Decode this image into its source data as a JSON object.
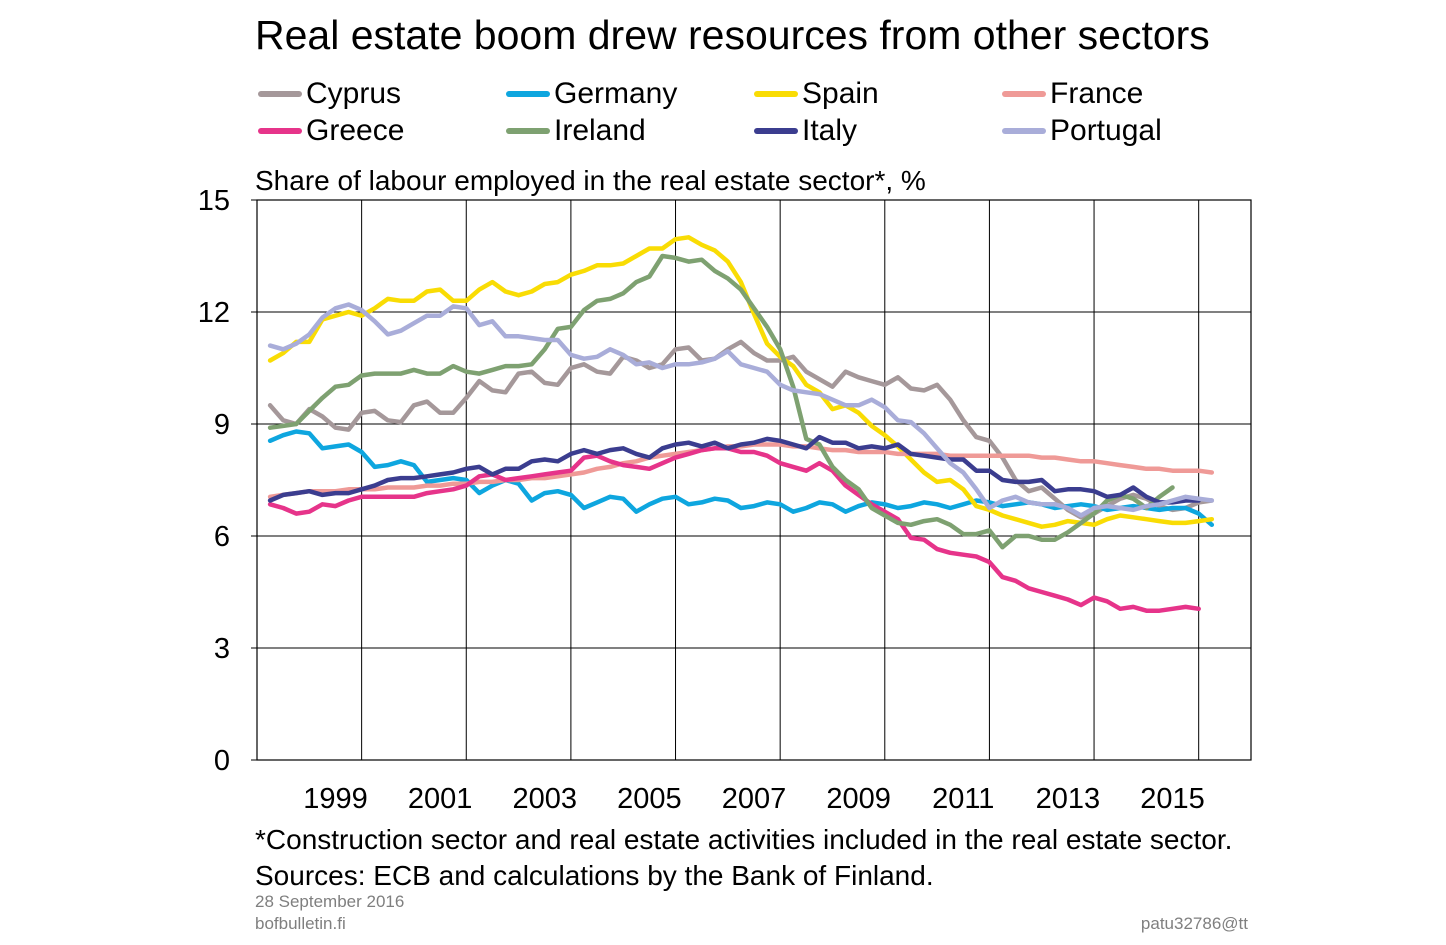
{
  "title": "Real estate boom drew resources from other sectors",
  "ylabel": "Share of labour employed in the real estate sector*, %",
  "footnote_1": "*Construction sector and real estate activities included in the real estate sector.",
  "footnote_2": "Sources: ECB and calculations by the Bank of Finland.",
  "date": "28 September 2016",
  "site": "bofbulletin.fi",
  "code": "patu32786@tt",
  "chart_data": {
    "type": "line",
    "x_start": 1998.25,
    "x_step": 0.25,
    "xlim": [
      1998.0,
      2017.0
    ],
    "ylim": [
      0,
      15
    ],
    "y_ticks": [
      0,
      3,
      6,
      9,
      12,
      15
    ],
    "x_tick_labels": [
      "1999",
      "2001",
      "2003",
      "2005",
      "2007",
      "2009",
      "2011",
      "2013",
      "2015"
    ],
    "grid": true,
    "legend_position": "top",
    "series": [
      {
        "name": "Cyprus",
        "color": "#a5989a",
        "values": [
          9.5,
          9.1,
          9.0,
          9.4,
          9.2,
          8.9,
          8.85,
          9.3,
          9.35,
          9.1,
          9.05,
          9.5,
          9.6,
          9.3,
          9.3,
          9.7,
          10.15,
          9.9,
          9.85,
          10.35,
          10.4,
          10.1,
          10.05,
          10.5,
          10.6,
          10.4,
          10.35,
          10.8,
          10.7,
          10.5,
          10.6,
          11.0,
          11.05,
          10.7,
          10.75,
          11.0,
          11.2,
          10.9,
          10.7,
          10.7,
          10.8,
          10.4,
          10.2,
          10.0,
          10.4,
          10.25,
          10.15,
          10.05,
          10.25,
          9.95,
          9.9,
          10.05,
          9.65,
          9.1,
          8.65,
          8.55,
          8.1,
          7.5,
          7.2,
          7.3,
          7.0,
          6.7,
          6.5,
          6.6,
          6.8,
          7.0,
          7.1,
          7.0,
          6.8,
          6.7,
          6.75,
          6.9,
          6.95
        ]
      },
      {
        "name": "Germany",
        "color": "#0ea6df",
        "values": [
          8.55,
          8.7,
          8.8,
          8.75,
          8.35,
          8.4,
          8.45,
          8.25,
          7.85,
          7.9,
          8.0,
          7.9,
          7.45,
          7.5,
          7.55,
          7.5,
          7.15,
          7.35,
          7.5,
          7.4,
          6.95,
          7.15,
          7.2,
          7.1,
          6.75,
          6.9,
          7.05,
          7.0,
          6.65,
          6.85,
          7.0,
          7.05,
          6.85,
          6.9,
          7.0,
          6.95,
          6.75,
          6.8,
          6.9,
          6.85,
          6.65,
          6.75,
          6.9,
          6.85,
          6.65,
          6.8,
          6.9,
          6.85,
          6.75,
          6.8,
          6.9,
          6.85,
          6.75,
          6.85,
          6.95,
          6.9,
          6.8,
          6.85,
          6.9,
          6.85,
          6.75,
          6.8,
          6.85,
          6.8,
          6.7,
          6.75,
          6.8,
          6.75,
          6.7,
          6.75,
          6.75,
          6.6,
          6.3
        ]
      },
      {
        "name": "Spain",
        "color": "#f9dc04",
        "values": [
          10.7,
          10.9,
          11.2,
          11.2,
          11.8,
          11.9,
          12.0,
          11.9,
          12.1,
          12.35,
          12.3,
          12.3,
          12.55,
          12.6,
          12.3,
          12.3,
          12.6,
          12.8,
          12.55,
          12.45,
          12.55,
          12.75,
          12.8,
          13.0,
          13.1,
          13.25,
          13.25,
          13.3,
          13.5,
          13.7,
          13.7,
          13.95,
          14.0,
          13.8,
          13.65,
          13.35,
          12.8,
          11.95,
          11.15,
          10.8,
          10.55,
          10.05,
          9.85,
          9.4,
          9.5,
          9.3,
          8.95,
          8.7,
          8.4,
          8.05,
          7.7,
          7.45,
          7.5,
          7.25,
          6.8,
          6.7,
          6.55,
          6.45,
          6.35,
          6.25,
          6.3,
          6.4,
          6.35,
          6.3,
          6.45,
          6.55,
          6.5,
          6.45,
          6.4,
          6.35,
          6.35,
          6.4,
          6.45
        ]
      },
      {
        "name": "France",
        "color": "#ef9a97",
        "values": [
          7.05,
          7.1,
          7.15,
          7.2,
          7.2,
          7.2,
          7.25,
          7.25,
          7.25,
          7.3,
          7.3,
          7.3,
          7.35,
          7.35,
          7.4,
          7.4,
          7.45,
          7.45,
          7.5,
          7.5,
          7.55,
          7.55,
          7.6,
          7.65,
          7.7,
          7.8,
          7.85,
          7.95,
          8.0,
          8.1,
          8.15,
          8.2,
          8.25,
          8.3,
          8.35,
          8.4,
          8.4,
          8.45,
          8.45,
          8.45,
          8.4,
          8.4,
          8.35,
          8.3,
          8.3,
          8.25,
          8.25,
          8.25,
          8.2,
          8.2,
          8.2,
          8.2,
          8.15,
          8.15,
          8.15,
          8.15,
          8.15,
          8.15,
          8.15,
          8.1,
          8.1,
          8.05,
          8.0,
          8.0,
          7.95,
          7.9,
          7.85,
          7.8,
          7.8,
          7.75,
          7.75,
          7.75,
          7.7
        ]
      },
      {
        "name": "Greece",
        "color": "#e6348a",
        "values": [
          6.85,
          6.75,
          6.6,
          6.65,
          6.85,
          6.8,
          6.95,
          7.05,
          7.05,
          7.05,
          7.05,
          7.05,
          7.15,
          7.2,
          7.25,
          7.35,
          7.6,
          7.65,
          7.5,
          7.55,
          7.6,
          7.65,
          7.7,
          7.75,
          8.1,
          8.15,
          8.0,
          7.9,
          7.85,
          7.8,
          7.95,
          8.1,
          8.2,
          8.3,
          8.35,
          8.35,
          8.25,
          8.25,
          8.15,
          7.95,
          7.85,
          7.75,
          7.95,
          7.75,
          7.35,
          7.1,
          6.85,
          6.65,
          6.45,
          5.95,
          5.9,
          5.65,
          5.55,
          5.5,
          5.45,
          5.3,
          4.9,
          4.8,
          4.6,
          4.5,
          4.4,
          4.3,
          4.15,
          4.35,
          4.25,
          4.05,
          4.1,
          4.0,
          4.0,
          4.05,
          4.1,
          4.05
        ]
      },
      {
        "name": "Ireland",
        "color": "#7ea171",
        "values": [
          8.9,
          8.95,
          9.0,
          9.35,
          9.7,
          10.0,
          10.05,
          10.3,
          10.35,
          10.35,
          10.35,
          10.45,
          10.35,
          10.35,
          10.55,
          10.4,
          10.35,
          10.45,
          10.55,
          10.55,
          10.6,
          11.0,
          11.55,
          11.6,
          12.05,
          12.3,
          12.35,
          12.5,
          12.8,
          12.95,
          13.5,
          13.45,
          13.35,
          13.4,
          13.1,
          12.9,
          12.6,
          12.1,
          11.6,
          11.0,
          10.0,
          8.6,
          8.45,
          7.85,
          7.5,
          7.25,
          6.75,
          6.55,
          6.35,
          6.3,
          6.4,
          6.45,
          6.3,
          6.05,
          6.05,
          6.15,
          5.7,
          6.0,
          6.0,
          5.9,
          5.9,
          6.1,
          6.35,
          6.6,
          6.95,
          7.1,
          7.0,
          6.75,
          7.05,
          7.3
        ]
      },
      {
        "name": "Italy",
        "color": "#3b3d8f",
        "values": [
          6.95,
          7.1,
          7.15,
          7.2,
          7.1,
          7.15,
          7.15,
          7.25,
          7.35,
          7.5,
          7.55,
          7.55,
          7.6,
          7.65,
          7.7,
          7.8,
          7.85,
          7.65,
          7.8,
          7.8,
          8.0,
          8.05,
          8.0,
          8.2,
          8.3,
          8.2,
          8.3,
          8.35,
          8.2,
          8.1,
          8.35,
          8.45,
          8.5,
          8.4,
          8.5,
          8.35,
          8.45,
          8.5,
          8.6,
          8.55,
          8.45,
          8.35,
          8.65,
          8.5,
          8.5,
          8.35,
          8.4,
          8.35,
          8.45,
          8.2,
          8.15,
          8.1,
          8.05,
          8.05,
          7.75,
          7.75,
          7.5,
          7.45,
          7.45,
          7.5,
          7.2,
          7.25,
          7.25,
          7.2,
          7.05,
          7.1,
          7.3,
          7.05,
          6.9,
          6.9,
          6.95,
          6.95
        ]
      },
      {
        "name": "Portugal",
        "color": "#a9add9",
        "values": [
          11.1,
          11.0,
          11.15,
          11.4,
          11.85,
          12.1,
          12.2,
          12.05,
          11.75,
          11.4,
          11.5,
          11.7,
          11.9,
          11.9,
          12.15,
          12.1,
          11.65,
          11.75,
          11.35,
          11.35,
          11.3,
          11.25,
          11.25,
          10.85,
          10.75,
          10.8,
          11.0,
          10.85,
          10.6,
          10.65,
          10.5,
          10.6,
          10.6,
          10.65,
          10.75,
          10.95,
          10.6,
          10.5,
          10.4,
          10.05,
          9.9,
          9.85,
          9.8,
          9.65,
          9.5,
          9.5,
          9.65,
          9.45,
          9.1,
          9.05,
          8.75,
          8.35,
          7.95,
          7.7,
          7.25,
          6.75,
          6.95,
          7.05,
          6.9,
          6.85,
          6.85,
          6.75,
          6.55,
          6.75,
          6.8,
          6.75,
          6.7,
          6.8,
          6.85,
          6.95,
          7.05,
          7.0,
          6.95
        ]
      }
    ]
  }
}
